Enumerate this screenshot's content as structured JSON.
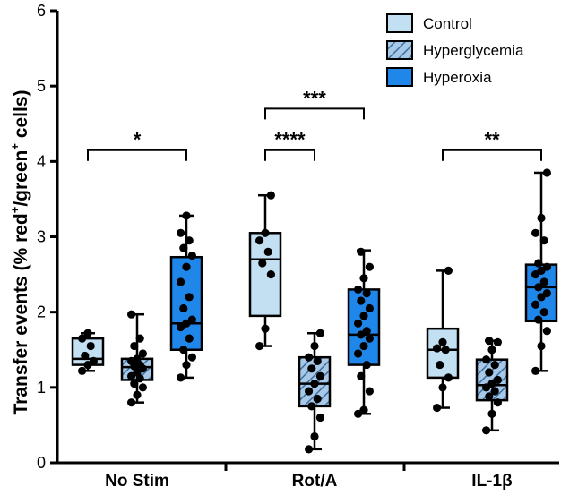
{
  "chart_data": {
    "type": "box",
    "title": "",
    "xlabel": "",
    "ylabel": {
      "prefix": "Transfer events (% red",
      "sup1": "+",
      "mid": "/green",
      "sup2": "+",
      "suffix": " cells)"
    },
    "ylim": [
      0,
      6
    ],
    "yticks": [
      "0",
      "1",
      "2",
      "3",
      "4",
      "5",
      "6"
    ],
    "groups": [
      "No Stim",
      "Rot/A",
      "IL-1β"
    ],
    "series": [
      {
        "name": "Control",
        "color": "#c3dff2",
        "pattern": "solid",
        "boxes": [
          {
            "min": 1.22,
            "q1": 1.3,
            "median": 1.38,
            "q3": 1.65,
            "max": 1.72,
            "points": [
              1.22,
              1.3,
              1.35,
              1.42,
              1.55,
              1.65,
              1.72
            ]
          },
          {
            "min": 1.55,
            "q1": 1.95,
            "median": 2.7,
            "q3": 3.05,
            "max": 3.55,
            "points": [
              1.55,
              1.78,
              2.5,
              2.65,
              2.8,
              2.95,
              3.05,
              3.55
            ]
          },
          {
            "min": 0.73,
            "q1": 1.13,
            "median": 1.5,
            "q3": 1.78,
            "max": 2.55,
            "points": [
              0.73,
              1.0,
              1.13,
              1.3,
              1.5,
              1.52,
              1.6,
              2.55
            ]
          }
        ]
      },
      {
        "name": "Hyperglycemia",
        "color": "#a7c8e6",
        "pattern": "hatched",
        "boxes": [
          {
            "min": 0.8,
            "q1": 1.1,
            "median": 1.27,
            "q3": 1.38,
            "max": 1.97,
            "points": [
              0.8,
              0.9,
              1.0,
              1.05,
              1.12,
              1.15,
              1.2,
              1.25,
              1.28,
              1.3,
              1.35,
              1.38,
              1.45,
              1.55,
              1.65,
              1.97
            ]
          },
          {
            "min": 0.18,
            "q1": 0.75,
            "median": 1.05,
            "q3": 1.4,
            "max": 1.72,
            "points": [
              0.18,
              0.35,
              0.6,
              0.75,
              0.85,
              0.95,
              1.05,
              1.15,
              1.25,
              1.35,
              1.4,
              1.55,
              1.72
            ]
          },
          {
            "min": 0.43,
            "q1": 0.83,
            "median": 1.03,
            "q3": 1.37,
            "max": 1.62,
            "points": [
              0.43,
              0.65,
              0.8,
              0.88,
              0.95,
              1.0,
              1.05,
              1.1,
              1.2,
              1.3,
              1.37,
              1.5,
              1.6,
              1.62
            ]
          }
        ]
      },
      {
        "name": "Hyperoxia",
        "color": "#1f86ea",
        "pattern": "solid",
        "boxes": [
          {
            "min": 1.13,
            "q1": 1.5,
            "median": 1.85,
            "q3": 2.73,
            "max": 3.28,
            "points": [
              1.13,
              1.3,
              1.4,
              1.5,
              1.65,
              1.8,
              1.85,
              1.9,
              2.05,
              2.2,
              2.4,
              2.6,
              2.75,
              2.85,
              2.95,
              3.05,
              3.28
            ]
          },
          {
            "min": 0.65,
            "q1": 1.3,
            "median": 1.7,
            "q3": 2.3,
            "max": 2.82,
            "points": [
              0.65,
              0.7,
              0.95,
              1.15,
              1.3,
              1.45,
              1.55,
              1.65,
              1.7,
              1.75,
              1.85,
              1.95,
              2.05,
              2.15,
              2.25,
              2.3,
              2.45,
              2.6,
              2.8
            ]
          },
          {
            "min": 1.22,
            "q1": 1.88,
            "median": 2.33,
            "q3": 2.63,
            "max": 3.85,
            "points": [
              1.22,
              1.55,
              1.75,
              1.9,
              2.0,
              2.1,
              2.2,
              2.25,
              2.33,
              2.4,
              2.5,
              2.55,
              2.6,
              2.65,
              2.95,
              3.05,
              3.25,
              3.85
            ]
          }
        ]
      }
    ],
    "significance": [
      {
        "group": 0,
        "from": "Control",
        "to": "Hyperoxia",
        "y": 4.15,
        "label": "*"
      },
      {
        "group": 1,
        "from": "Control",
        "to": "Hyperglycemia",
        "y": 4.15,
        "label": "****"
      },
      {
        "group": 1,
        "from": "Control",
        "to": "Hyperoxia",
        "y": 4.7,
        "label": "***"
      },
      {
        "group": 2,
        "from": "Control",
        "to": "Hyperoxia",
        "y": 4.15,
        "label": "**"
      }
    ],
    "legend": {
      "position": "top-right",
      "entries": [
        "Control",
        "Hyperglycemia",
        "Hyperoxia"
      ]
    }
  }
}
